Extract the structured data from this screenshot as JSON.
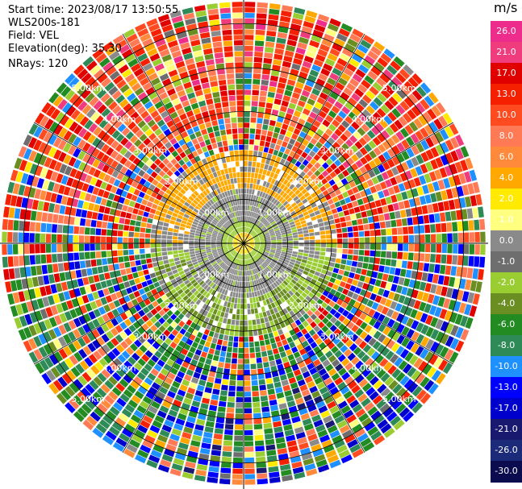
{
  "info": {
    "start_time": "Start time: 2023/08/17 13:50:55",
    "station": "WLS200s-181",
    "field": "Field: VEL",
    "elevation": "Elevation(deg): 35.30",
    "nrays": "NRays: 120"
  },
  "colorbar": {
    "unit": "m/s",
    "ticks": [
      "26.0",
      "21.0",
      "17.0",
      "13.0",
      "10.0",
      "8.0",
      "6.0",
      "4.0",
      "2.0",
      "1.0",
      "0.0",
      "-1.0",
      "-2.0",
      "-4.0",
      "-6.0",
      "-8.0",
      "-10.0",
      "-13.0",
      "-17.0",
      "-21.0",
      "-26.0",
      "-30.0"
    ],
    "colors": [
      "#ee2c8c",
      "#f03c7c",
      "#e00000",
      "#f52000",
      "#ff4b1f",
      "#ff7a55",
      "#ff8a3c",
      "#ffa800",
      "#ffea00",
      "#ffff80",
      "#8a8a8a",
      "#6e6e6e",
      "#9acd32",
      "#6b8e23",
      "#228b22",
      "#2e8b57",
      "#1e90ff",
      "#0000ff",
      "#0000cd",
      "#191970",
      "#1c2a7a",
      "#0b0b50"
    ]
  },
  "chart_data": {
    "type": "heatmap",
    "projection": "polar",
    "field": "VEL",
    "nrays": 120,
    "elevation_deg": 35.3,
    "units": "m/s",
    "range_ring_labels": [
      "1.00km",
      "2.00km",
      "3.00km",
      "4.00km",
      "5.00km"
    ],
    "value_range": [
      -30.0,
      26.0
    ],
    "pattern": {
      "center_disk": "yellow (about +2 m/s) within ~0.2 km",
      "inner_ring": "olive/green (-2 to -4 m/s) 0.2-0.5 km",
      "grey_ring": "near zero (0 to -1 m/s) 0.5-1.2 km",
      "north_arc": "yellow (+2 to +4 m/s) north side 1.2-2.0 km",
      "south_arc": "green (-2 to -6 m/s) south side 1.2-2.0 km",
      "outer": "noisy mixed values beyond ~2 km"
    }
  }
}
